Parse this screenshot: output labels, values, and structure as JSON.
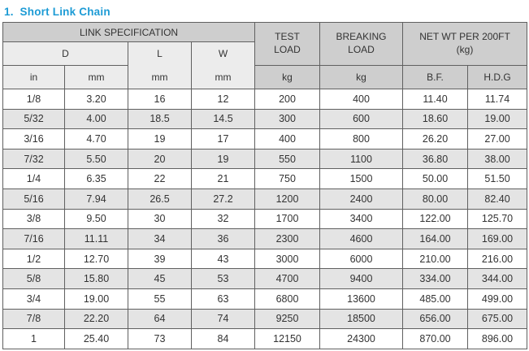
{
  "title": "1.  Short Link Chain",
  "colors": {
    "title": "#1d9bd5",
    "border": "#606060",
    "dark": "#cecece",
    "light": "#ececec",
    "stripe": "#e4e4e4"
  },
  "table": {
    "header": {
      "link_specification": "LINK SPECIFICATION",
      "d": "D",
      "l": "L",
      "w": "W",
      "in": "in",
      "mm": "mm",
      "kg": "kg",
      "test_load": "TEST\nLOAD",
      "breaking_load": "BREAKING\nLOAD",
      "net_wt": "NET WT PER 200FT\n(kg)",
      "bf": "B.F.",
      "hdg": "H.D.G"
    },
    "rows": [
      [
        "1/8",
        "3.20",
        "16",
        "12",
        "200",
        "400",
        "11.40",
        "11.74"
      ],
      [
        "5/32",
        "4.00",
        "18.5",
        "14.5",
        "300",
        "600",
        "18.60",
        "19.00"
      ],
      [
        "3/16",
        "4.70",
        "19",
        "17",
        "400",
        "800",
        "26.20",
        "27.00"
      ],
      [
        "7/32",
        "5.50",
        "20",
        "19",
        "550",
        "1100",
        "36.80",
        "38.00"
      ],
      [
        "1/4",
        "6.35",
        "22",
        "21",
        "750",
        "1500",
        "50.00",
        "51.50"
      ],
      [
        "5/16",
        "7.94",
        "26.5",
        "27.2",
        "1200",
        "2400",
        "80.00",
        "82.40"
      ],
      [
        "3/8",
        "9.50",
        "30",
        "32",
        "1700",
        "3400",
        "122.00",
        "125.70"
      ],
      [
        "7/16",
        "11.11",
        "34",
        "36",
        "2300",
        "4600",
        "164.00",
        "169.00"
      ],
      [
        "1/2",
        "12.70",
        "39",
        "43",
        "3000",
        "6000",
        "210.00",
        "216.00"
      ],
      [
        "5/8",
        "15.80",
        "45",
        "53",
        "4700",
        "9400",
        "334.00",
        "344.00"
      ],
      [
        "3/4",
        "19.00",
        "55",
        "63",
        "6800",
        "13600",
        "485.00",
        "499.00"
      ],
      [
        "7/8",
        "22.20",
        "64",
        "74",
        "9250",
        "18500",
        "656.00",
        "675.00"
      ],
      [
        "1",
        "25.40",
        "73",
        "84",
        "12150",
        "24300",
        "870.00",
        "896.00"
      ]
    ]
  }
}
